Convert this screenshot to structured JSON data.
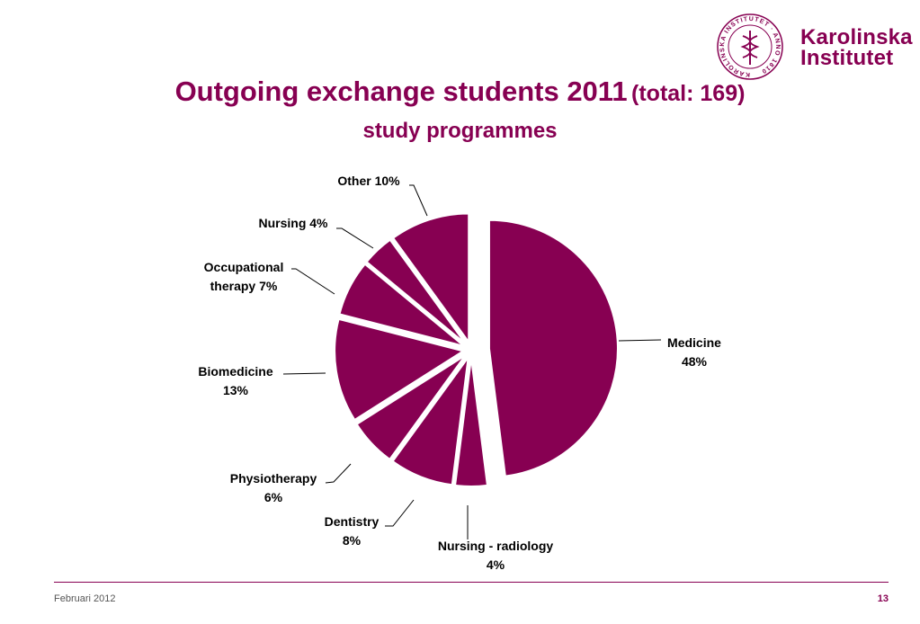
{
  "logo": {
    "seal_text": "KAROLINSKA INSTITUTET · ANNO 1810",
    "line1": "Karolinska",
    "line2": "Institutet"
  },
  "header": {
    "title": "Outgoing exchange students 2011",
    "title_total": "(total: 169)",
    "subtitle": "study programmes"
  },
  "footer": {
    "date": "Februari 2012",
    "page": "13"
  },
  "colors": {
    "accent": "#870052",
    "slice": "#870052"
  },
  "chart_data": {
    "type": "pie",
    "title": "Outgoing exchange students 2011 (total: 169)",
    "subtitle": "study programmes",
    "slices": [
      {
        "label_lines": [
          "Medicine",
          "48%"
        ],
        "category": "Medicine",
        "value": 48
      },
      {
        "label_lines": [
          "Nursing - radiology",
          "4%"
        ],
        "category": "Nursing - radiology",
        "value": 4
      },
      {
        "label_lines": [
          "Dentistry",
          "8%"
        ],
        "category": "Dentistry",
        "value": 8
      },
      {
        "label_lines": [
          "Physiotherapy",
          "6%"
        ],
        "category": "Physiotherapy",
        "value": 6
      },
      {
        "label_lines": [
          "Biomedicine",
          "13%"
        ],
        "category": "Biomedicine",
        "value": 13
      },
      {
        "label_lines": [
          "Occupational",
          "therapy 7%"
        ],
        "category": "Occupational therapy",
        "value": 7
      },
      {
        "label_lines": [
          "Nursing 4%"
        ],
        "category": "Nursing",
        "value": 4
      },
      {
        "label_lines": [
          "Other 10%"
        ],
        "category": "Other",
        "value": 10
      }
    ]
  }
}
